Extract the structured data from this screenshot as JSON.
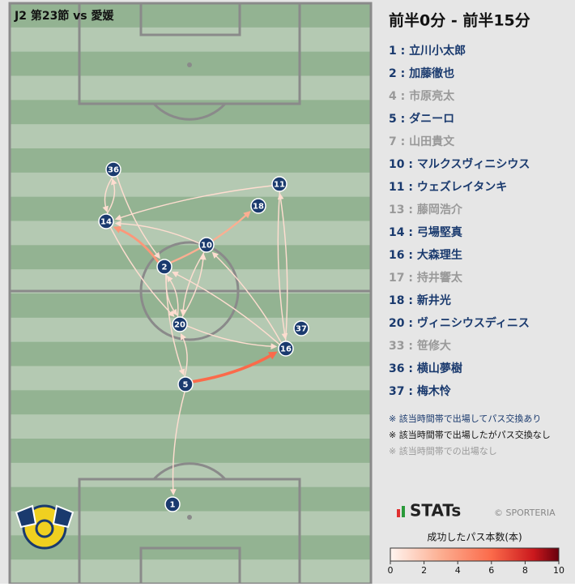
{
  "header": {
    "title": "J2 第23節 vs 愛媛",
    "period": "前半0分 - 前半15分"
  },
  "players": [
    {
      "label": "1 : 立川小太郎",
      "color": "#1a3a6e"
    },
    {
      "label": "2 : 加藤徹也",
      "color": "#1a3a6e"
    },
    {
      "label": "4 : 市原亮太",
      "color": "#999999"
    },
    {
      "label": "5 : ダニーロ",
      "color": "#1a3a6e"
    },
    {
      "label": "7 : 山田貴文",
      "color": "#999999"
    },
    {
      "label": "10 : マルクスヴィニシウス",
      "color": "#1a3a6e"
    },
    {
      "label": "11 : ウェズレイタンキ",
      "color": "#1a3a6e"
    },
    {
      "label": "13 : 藤岡浩介",
      "color": "#999999"
    },
    {
      "label": "14 : 弓場堅真",
      "color": "#1a3a6e"
    },
    {
      "label": "16 : 大森理生",
      "color": "#1a3a6e"
    },
    {
      "label": "17 : 持井響太",
      "color": "#999999"
    },
    {
      "label": "18 : 新井光",
      "color": "#1a3a6e"
    },
    {
      "label": "20 : ヴィニシウスディニス",
      "color": "#1a3a6e"
    },
    {
      "label": "33 : 笹修大",
      "color": "#999999"
    },
    {
      "label": "36 : 横山夢樹",
      "color": "#1a3a6e"
    },
    {
      "label": "37 : 梅木怜",
      "color": "#1a3a6e"
    }
  ],
  "nodes": [
    {
      "label": "36"
    },
    {
      "label": "14"
    },
    {
      "label": "11"
    },
    {
      "label": "18"
    },
    {
      "label": "10"
    },
    {
      "label": "2"
    },
    {
      "label": "20"
    },
    {
      "label": "37"
    },
    {
      "label": "16"
    },
    {
      "label": "5"
    },
    {
      "label": "1"
    }
  ],
  "passes": [
    {
      "from": "5",
      "to": "16",
      "count": 6
    },
    {
      "from": "2",
      "to": "14",
      "count": 4
    },
    {
      "from": "2",
      "to": "18",
      "count": 3
    },
    {
      "from": "14",
      "to": "36",
      "count": 1
    },
    {
      "from": "36",
      "to": "14",
      "count": 1
    },
    {
      "from": "11",
      "to": "14",
      "count": 1
    },
    {
      "from": "11",
      "to": "16",
      "count": 1
    },
    {
      "from": "16",
      "to": "11",
      "count": 1
    },
    {
      "from": "16",
      "to": "10",
      "count": 1
    },
    {
      "from": "10",
      "to": "14",
      "count": 1
    },
    {
      "from": "14",
      "to": "20",
      "count": 1
    },
    {
      "from": "20",
      "to": "2",
      "count": 1
    },
    {
      "from": "2",
      "to": "20",
      "count": 1
    },
    {
      "from": "20",
      "to": "10",
      "count": 1
    },
    {
      "from": "10",
      "to": "20",
      "count": 1
    },
    {
      "from": "2",
      "to": "5",
      "count": 1
    },
    {
      "from": "5",
      "to": "20",
      "count": 1
    },
    {
      "from": "20",
      "to": "16",
      "count": 1
    },
    {
      "from": "5",
      "to": "1",
      "count": 1
    },
    {
      "from": "16",
      "to": "2",
      "count": 1
    },
    {
      "from": "36",
      "to": "2",
      "count": 1
    }
  ],
  "notes": [
    {
      "text": "※ 該当時間帯で出場してパス交換あり",
      "color": "#1a3a6e"
    },
    {
      "text": "※ 該当時間帯で出場したがパス交換なし",
      "color": "#111111"
    },
    {
      "text": "※ 該当時間帯での出場なし",
      "color": "#999999"
    }
  ],
  "brand": {
    "logo": "STATs",
    "credit": "© SPORTERIA"
  },
  "colorbar": {
    "title": "成功したパス本数(本)",
    "lim": [
      0,
      10
    ],
    "ticks": [
      0,
      2,
      4,
      6,
      8,
      10
    ]
  }
}
